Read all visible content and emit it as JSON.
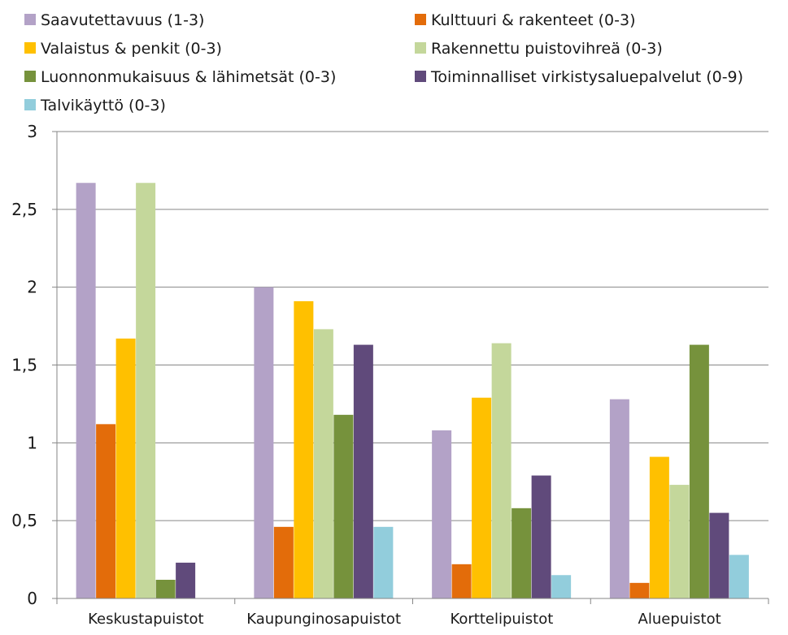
{
  "chart_data": {
    "type": "bar",
    "title": "",
    "xlabel": "",
    "ylabel": "",
    "categories": [
      "Keskustapuistot",
      "Kaupunginosapuistot",
      "Korttelipuistot",
      "Aluepuistot"
    ],
    "ylim": [
      0,
      3
    ],
    "yticks": [
      0,
      0.5,
      1,
      1.5,
      2,
      2.5,
      3
    ],
    "ytick_labels": [
      "0",
      "0,5",
      "1",
      "1,5",
      "2",
      "2,5",
      "3"
    ],
    "grid": true,
    "legend_position": "top",
    "series": [
      {
        "name": "Saavutettavuus (1-3)",
        "color": "#b3a2c7",
        "values": [
          2.67,
          2.0,
          1.08,
          1.28
        ]
      },
      {
        "name": "Kulttuuri & rakenteet (0-3)",
        "color": "#e36c0a",
        "values": [
          1.12,
          0.46,
          0.22,
          0.1
        ]
      },
      {
        "name": "Valaistus & penkit (0-3)",
        "color": "#ffc000",
        "values": [
          1.67,
          1.91,
          1.29,
          0.91
        ]
      },
      {
        "name": "Rakennettu puistovihreä (0-3)",
        "color": "#c4d79b",
        "values": [
          2.67,
          1.73,
          1.64,
          0.73
        ]
      },
      {
        "name": "Luonnonmukaisuus & lähimetsät (0-3)",
        "color": "#76923c",
        "values": [
          0.12,
          1.18,
          0.58,
          1.63
        ]
      },
      {
        "name": "Toiminnalliset virkistysaluepalvelut (0-9)",
        "color": "#604a7b",
        "values": [
          0.23,
          1.63,
          0.79,
          0.55
        ]
      },
      {
        "name": "Talvikäyttö (0-3)",
        "color": "#92cddc",
        "values": [
          0,
          0.46,
          0.15,
          0.28
        ]
      }
    ]
  }
}
